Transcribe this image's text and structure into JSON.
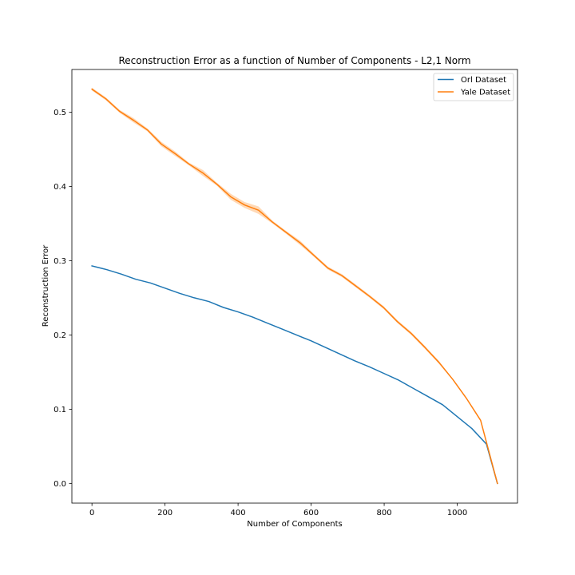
{
  "chart_data": {
    "type": "line",
    "title": "Reconstruction Error as a function of Number of Components - L2,1 Norm",
    "xlabel": "Number of Components",
    "ylabel": "Reconstruction Error",
    "xlim": [
      -55,
      1165
    ],
    "ylim": [
      -0.0265,
      0.5575
    ],
    "xticks": [
      0,
      200,
      400,
      600,
      800,
      1000
    ],
    "xtick_labels": [
      "0",
      "200",
      "400",
      "600",
      "800",
      "1000"
    ],
    "yticks": [
      0.0,
      0.1,
      0.2,
      0.3,
      0.4,
      0.5
    ],
    "ytick_labels": [
      "0.0",
      "0.1",
      "0.2",
      "0.3",
      "0.4",
      "0.5"
    ],
    "grid": false,
    "legend_position": "upper right",
    "series": [
      {
        "name": "Orl Dataset",
        "color": "#1f77b4",
        "x": [
          0,
          40,
          80,
          120,
          160,
          200,
          240,
          280,
          320,
          360,
          400,
          440,
          480,
          520,
          560,
          600,
          640,
          680,
          720,
          760,
          800,
          840,
          880,
          920,
          960,
          1000,
          1040,
          1080,
          1110
        ],
        "y": [
          0.293,
          0.288,
          0.282,
          0.275,
          0.27,
          0.263,
          0.256,
          0.25,
          0.245,
          0.237,
          0.231,
          0.224,
          0.216,
          0.208,
          0.2,
          0.192,
          0.183,
          0.174,
          0.165,
          0.157,
          0.148,
          0.139,
          0.128,
          0.117,
          0.106,
          0.09,
          0.074,
          0.053,
          0.0
        ]
      },
      {
        "name": "Yale Dataset",
        "color": "#ff7f0e",
        "band_color": "#ffbf86",
        "x": [
          0,
          38,
          76,
          114,
          152,
          190,
          228,
          266,
          304,
          342,
          380,
          418,
          456,
          494,
          532,
          570,
          608,
          646,
          684,
          722,
          760,
          798,
          836,
          874,
          912,
          950,
          988,
          1026,
          1064,
          1110
        ],
        "y": [
          0.531,
          0.518,
          0.501,
          0.489,
          0.476,
          0.457,
          0.444,
          0.43,
          0.418,
          0.403,
          0.386,
          0.375,
          0.368,
          0.352,
          0.338,
          0.324,
          0.307,
          0.29,
          0.28,
          0.266,
          0.252,
          0.237,
          0.218,
          0.202,
          0.183,
          0.163,
          0.14,
          0.114,
          0.085,
          0.0
        ],
        "band": [
          0.002,
          0.002,
          0.002,
          0.003,
          0.002,
          0.003,
          0.003,
          0.002,
          0.004,
          0.002,
          0.004,
          0.004,
          0.005,
          0.002,
          0.002,
          0.003,
          0.002,
          0.002,
          0.002,
          0.002,
          0.002,
          0.002,
          0.002,
          0.002,
          0.002,
          0.002,
          0.001,
          0.001,
          0.001,
          0.0
        ]
      }
    ]
  }
}
